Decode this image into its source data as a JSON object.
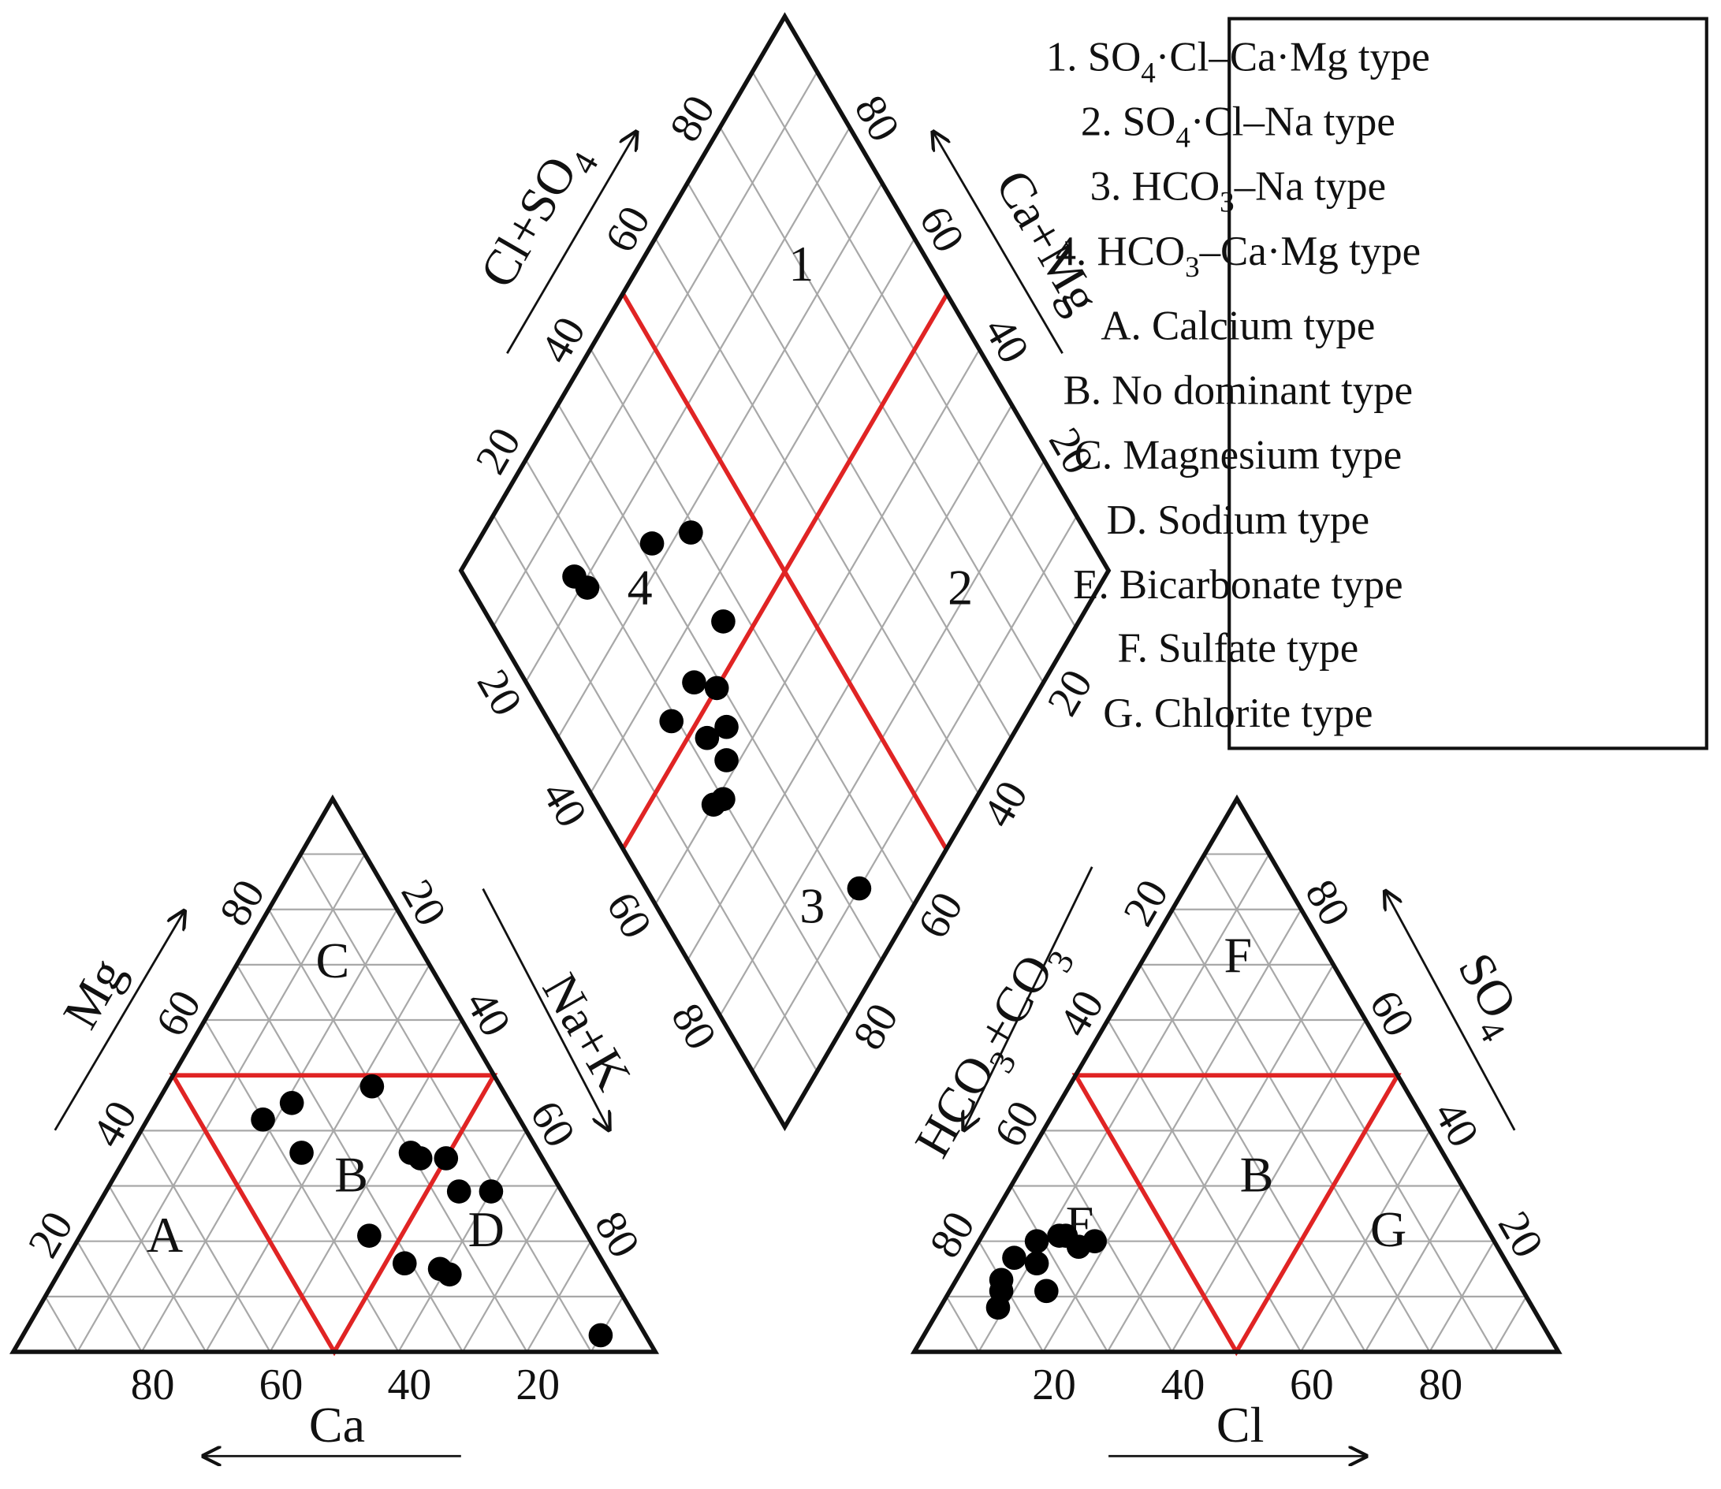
{
  "chart_data": [
    {
      "type": "ternary",
      "axes": [
        {
          "label": "Ca",
          "ticks": [
            80,
            60,
            40,
            20
          ]
        },
        {
          "label": "Mg",
          "ticks": [
            20,
            40,
            60,
            80
          ]
        },
        {
          "label": "Na+K",
          "ticks": [
            20,
            40,
            60,
            80
          ]
        }
      ],
      "values": [
        [
          40,
          42
        ],
        [
          34,
          45
        ],
        [
          20,
          48
        ],
        [
          37,
          36
        ],
        [
          20,
          36
        ],
        [
          19,
          35
        ],
        [
          15,
          35
        ],
        [
          16,
          29
        ],
        [
          11,
          29
        ],
        [
          34,
          21
        ],
        [
          31,
          16
        ],
        [
          26,
          15
        ],
        [
          25,
          14
        ],
        [
          7,
          3
        ]
      ],
      "regions": [
        "A",
        "B",
        "C",
        "D"
      ],
      "color": "#000000",
      "boundary_color": "#e02424"
    },
    {
      "type": "ternary",
      "axes": [
        {
          "label": "Cl",
          "ticks": [
            20,
            40,
            60,
            80
          ]
        },
        {
          "label": "SO4",
          "ticks": [
            20,
            40,
            60,
            80
          ]
        },
        {
          "label": "HCO3+CO3",
          "ticks": [
            20,
            40,
            60,
            80
          ]
        }
      ],
      "values": [
        [
          18,
          20
        ],
        [
          16,
          19
        ],
        [
          12,
          21
        ],
        [
          9,
          20
        ],
        [
          11,
          16
        ],
        [
          7,
          17
        ],
        [
          7,
          13
        ],
        [
          8,
          11
        ],
        [
          15,
          11
        ],
        [
          9,
          8
        ],
        [
          13,
          21
        ]
      ],
      "regions": [
        "E",
        "B",
        "F",
        "G"
      ],
      "color": "#000000",
      "boundary_color": "#e02424"
    },
    {
      "type": "diamond",
      "axes": [
        {
          "label": "Cl+SO4",
          "ticks": [
            20,
            40,
            60,
            80
          ]
        },
        {
          "label": "Ca+Mg",
          "ticks": [
            80,
            60,
            40,
            20
          ]
        },
        {
          "ticks": [
            20,
            40,
            60,
            80
          ]
        },
        {
          "ticks": [
            20,
            40,
            60,
            80
          ]
        }
      ],
      "values": [
        [
          17,
          82
        ],
        [
          18,
          79
        ],
        [
          32,
          73
        ],
        [
          39,
          68
        ],
        [
          36,
          55
        ],
        [
          26,
          54
        ],
        [
          29,
          50
        ],
        [
          19,
          54
        ],
        [
          23,
          47
        ],
        [
          27,
          45
        ],
        [
          24,
          42
        ],
        [
          18,
          40
        ],
        [
          20,
          39
        ],
        [
          33,
          10
        ]
      ],
      "regions": [
        "1",
        "2",
        "3",
        "4"
      ],
      "color": "#000000",
      "boundary_color": "#e02424"
    }
  ],
  "legend": [
    "1. SO4·Cl–Ca·Mg type",
    "2. SO4·Cl–Na type",
    "3. HCO3–Na type",
    "4. HCO3–Ca·Mg type",
    "A. Calcium type",
    "B. No dominant type",
    "C. Magnesium type",
    "D. Sodium type",
    "E. Bicarbonate type",
    "F. Sulfate type",
    "G. Chlorite type"
  ]
}
